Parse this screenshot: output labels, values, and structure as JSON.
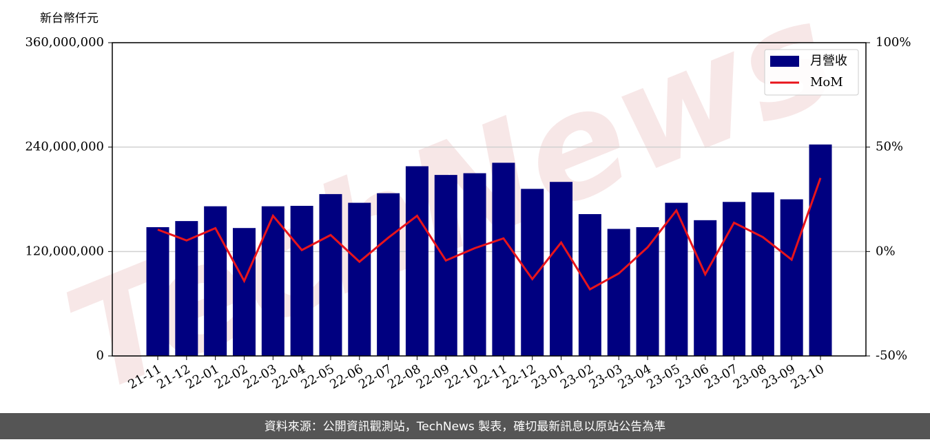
{
  "chart_data": {
    "type": "bar-line",
    "y_unit": "新台幣仟元",
    "watermark": "TechNews",
    "categories": [
      "21-11",
      "21-12",
      "22-01",
      "22-02",
      "22-03",
      "22-04",
      "22-05",
      "22-06",
      "22-07",
      "22-08",
      "22-09",
      "22-10",
      "22-11",
      "22-12",
      "23-01",
      "23-02",
      "23-03",
      "23-04",
      "23-05",
      "23-06",
      "23-07",
      "23-08",
      "23-09",
      "23-10"
    ],
    "series": [
      {
        "name": "月營收",
        "color": "#000080",
        "kind": "bar",
        "values": [
          148000000,
          155000000,
          172000000,
          147000000,
          172000000,
          172500000,
          186000000,
          176000000,
          187000000,
          218000000,
          208000000,
          210000000,
          222000000,
          192000000,
          200000000,
          163000000,
          146000000,
          148000000,
          176000000,
          156000000,
          177000000,
          188000000,
          180000000,
          243000000
        ]
      },
      {
        "name": "MoM",
        "color": "#e8141b",
        "kind": "line",
        "axis": "y2",
        "values": [
          10.5,
          5.3,
          11.2,
          -14.1,
          17.1,
          0.7,
          7.9,
          -4.9,
          6.6,
          17.1,
          -4.3,
          1.6,
          6.3,
          -13.2,
          4.3,
          -18.1,
          -10.5,
          2.0,
          19.7,
          -10.9,
          13.8,
          6.9,
          -3.9,
          35.2
        ]
      }
    ],
    "ylim": [
      0,
      360000000
    ],
    "yticks": [
      0,
      {
        "value": 120000000,
        "label": "120,000,000"
      },
      {
        "value": 240000000,
        "label": "240,000,000"
      },
      {
        "value": 360000000,
        "label": "360,000,000"
      }
    ],
    "y2lim": [
      -50,
      100
    ],
    "y2ticks": [
      {
        "value": -50,
        "label": "-50%"
      },
      {
        "value": 0,
        "label": "0%"
      },
      {
        "value": 50,
        "label": "50%"
      },
      {
        "value": 100,
        "label": "100%"
      }
    ],
    "grid": true,
    "legend": "upper right",
    "footer": "資料來源：公開資訊觀測站，TechNews 製表，確切最新訊息以原站公告為準"
  }
}
